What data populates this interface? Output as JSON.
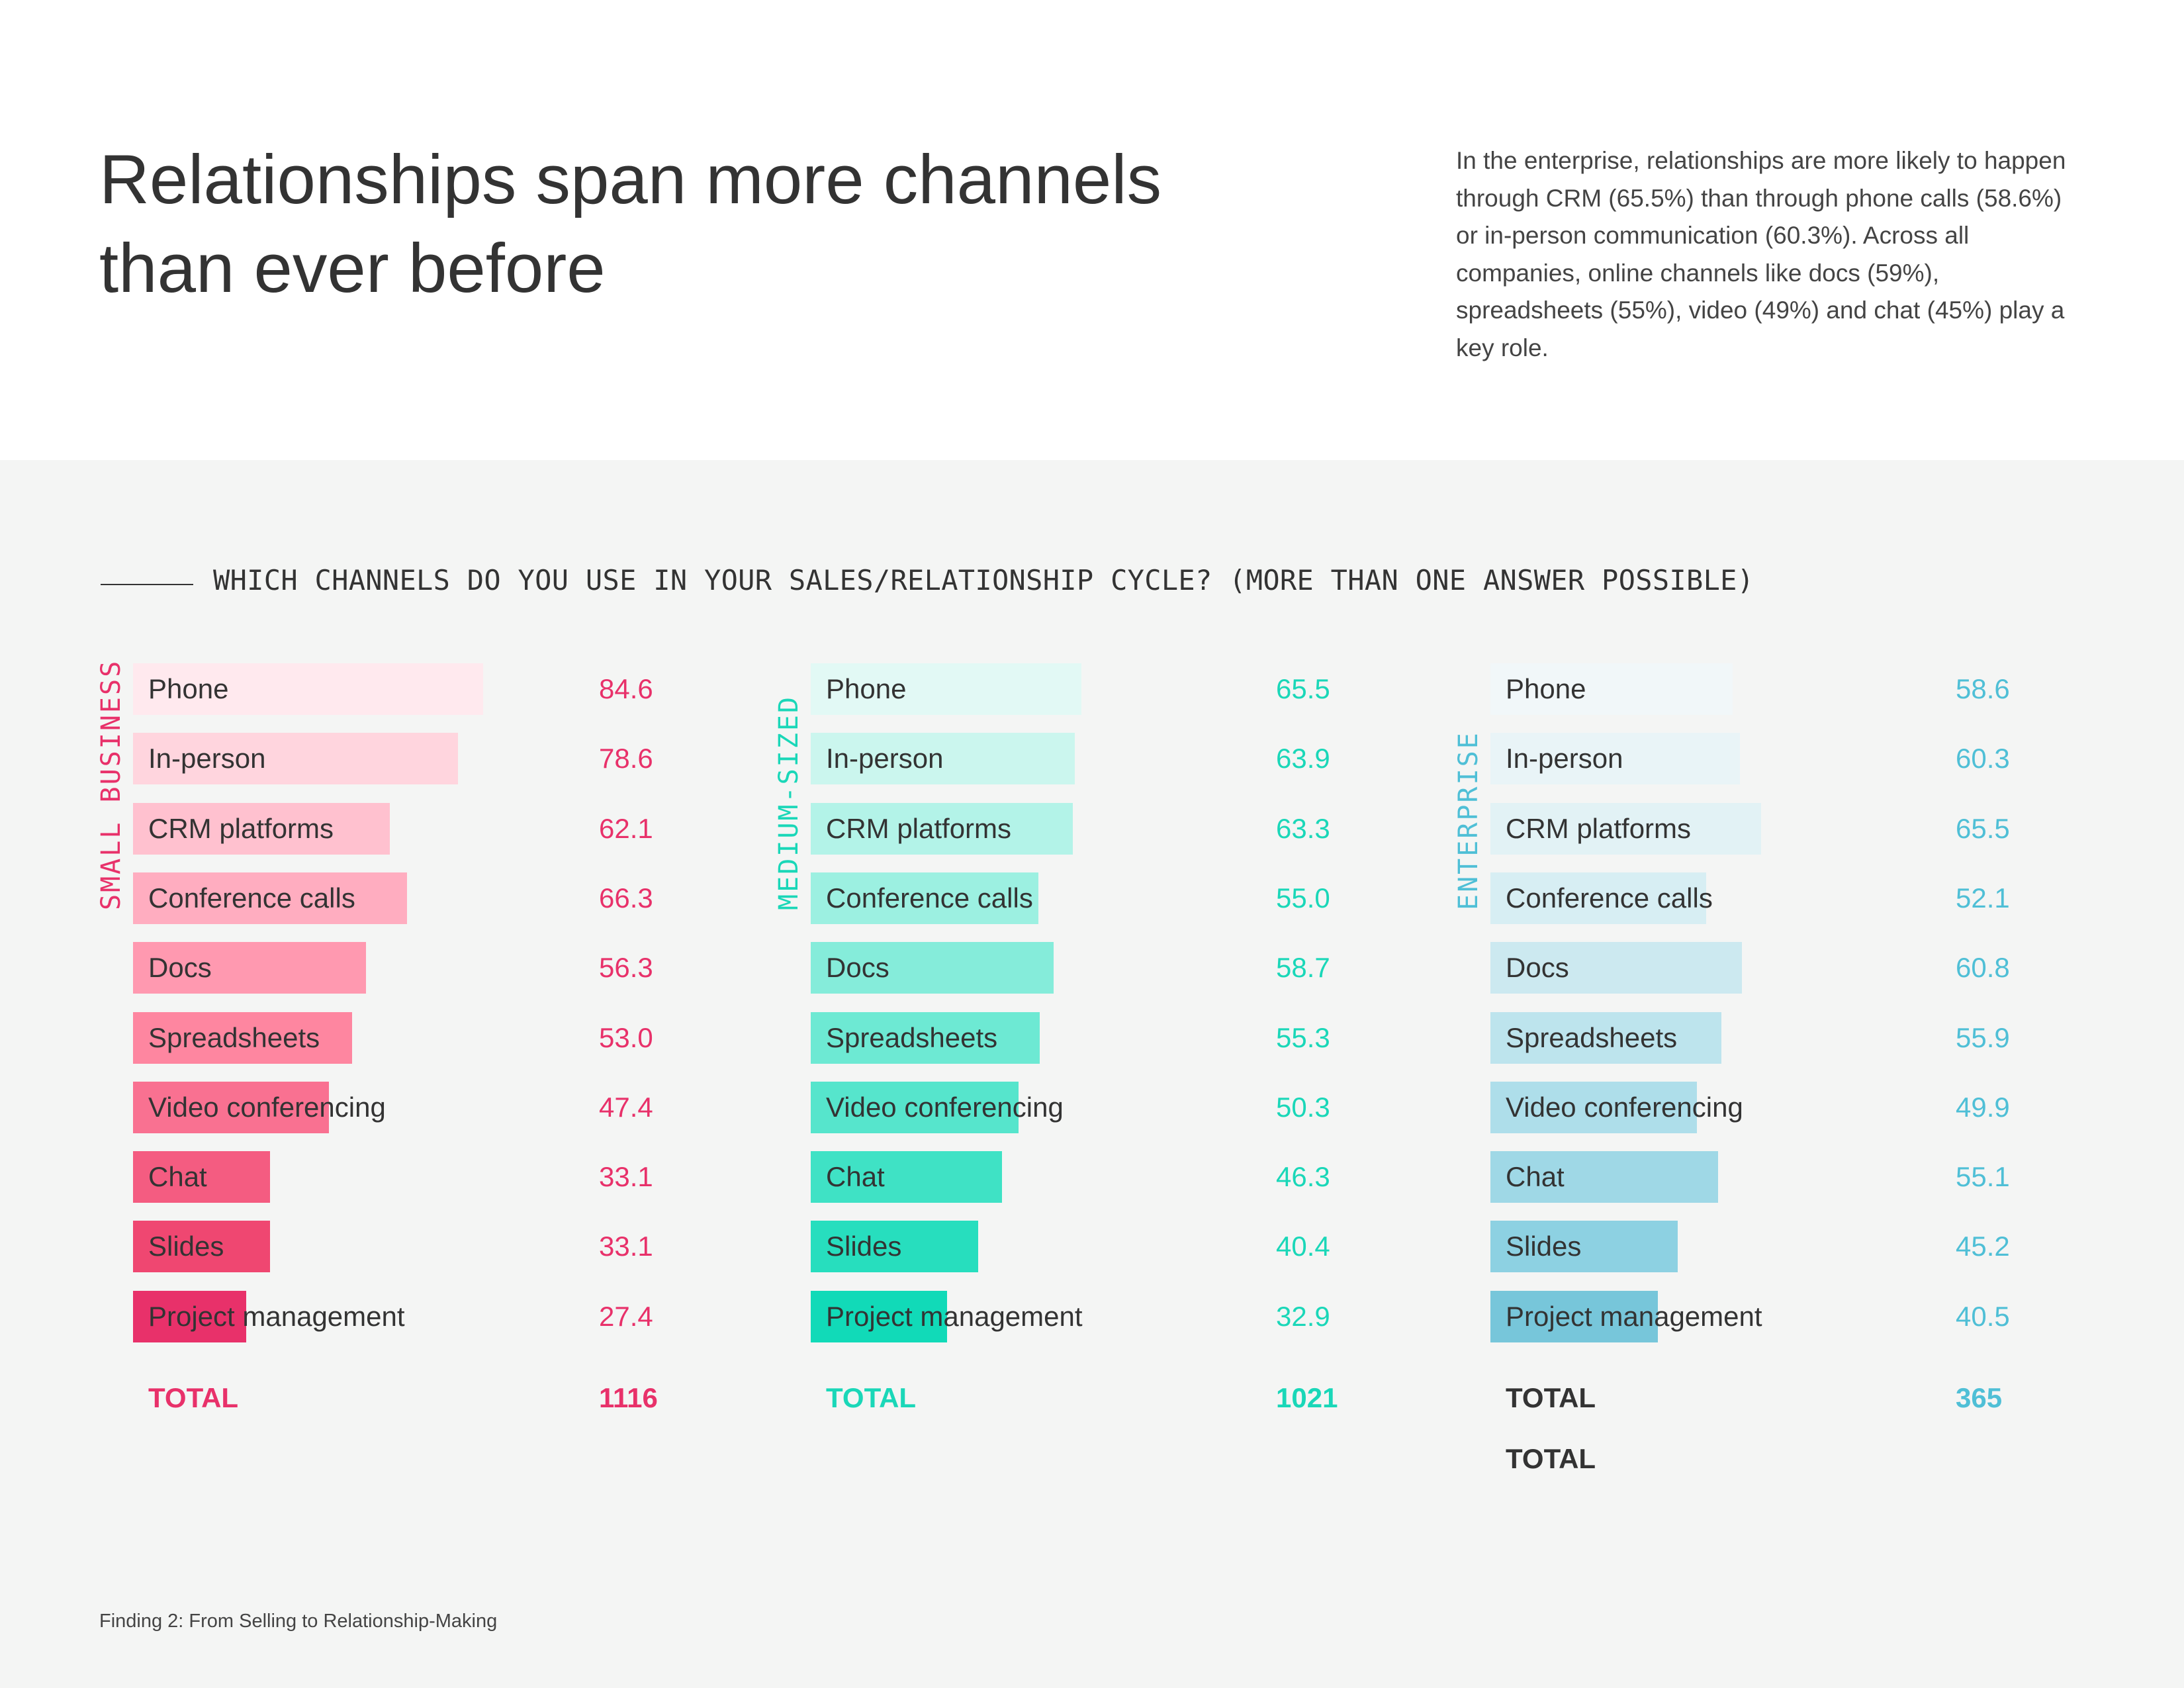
{
  "headline": "Relationships span more channels than ever before",
  "intro": "In the enterprise, relationships are more likely to happen through CRM (65.5%) than through phone calls (58.6%) or in-person communication (60.3%). Across all companies, online channels like docs (59%), spreadsheets (55%), video (49%) and chat (45%) play a key role.",
  "question": "WHICH CHANNELS DO YOU USE IN YOUR SALES/RELATIONSHIP CYCLE? (MORE THAN ONE ANSWER POSSIBLE)",
  "footer": "Finding 2: From Selling to Relationship-Making",
  "colors": {
    "small_business": "#e8316a",
    "medium_sized": "#1ad7b8",
    "enterprise": "#4fbfd6",
    "enterprise_total_label": "#333333"
  },
  "chart_data": {
    "type": "bar",
    "orientation": "horizontal",
    "title": "WHICH CHANNELS DO YOU USE IN YOUR SALES/RELATIONSHIP CYCLE? (MORE THAN ONE ANSWER POSSIBLE)",
    "categories": [
      "Phone",
      "In-person",
      "CRM platforms",
      "Conference calls",
      "Docs",
      "Spreadsheets",
      "Video conferencing",
      "Chat",
      "Slides",
      "Project management"
    ],
    "series": [
      {
        "name": "SMALL BUSINESS",
        "values": [
          84.6,
          78.6,
          62.1,
          66.3,
          56.3,
          53.0,
          47.4,
          33.1,
          33.1,
          27.4
        ],
        "labels": [
          "84.6",
          "78.6",
          "62.1",
          "66.3",
          "56.3",
          "53.0",
          "47.4",
          "33.1",
          "33.1",
          "27.4"
        ],
        "total_label": "TOTAL",
        "total": "1116",
        "extra_total_label": "",
        "shades": [
          "#ffe9ee",
          "#ffd5de",
          "#ffc1cf",
          "#ffadc0",
          "#ff99b0",
          "#fe86a0",
          "#f97191",
          "#f45c81",
          "#ef4771",
          "#e8316a"
        ]
      },
      {
        "name": "MEDIUM-SIZED",
        "values": [
          65.5,
          63.9,
          63.3,
          55.0,
          58.7,
          55.3,
          50.3,
          46.3,
          40.4,
          32.9
        ],
        "labels": [
          "65.5",
          "63.9",
          "63.3",
          "55.0",
          "58.7",
          "55.3",
          "50.3",
          "46.3",
          "40.4",
          "32.9"
        ],
        "total_label": "TOTAL",
        "total": "1021",
        "extra_total_label": "",
        "shades": [
          "#e2f9f5",
          "#cbf6ee",
          "#b3f3e8",
          "#9cf0e1",
          "#85ecda",
          "#6de9d3",
          "#56e5cc",
          "#3fe2c5",
          "#27debe",
          "#11dab8"
        ]
      },
      {
        "name": "ENTERPRISE",
        "values": [
          58.6,
          60.3,
          65.5,
          52.1,
          60.8,
          55.9,
          49.9,
          55.1,
          45.2,
          40.5
        ],
        "labels": [
          "58.6",
          "60.3",
          "65.5",
          "52.1",
          "60.8",
          "55.9",
          "49.9",
          "55.1",
          "45.2",
          "40.5"
        ],
        "total_label": "TOTAL",
        "total": "365",
        "extra_total_label": "TOTAL",
        "shades": [
          "#f1f7f9",
          "#e9f4f7",
          "#e2f2f5",
          "#d7eef3",
          "#cce9f0",
          "#bde4ed",
          "#aedeea",
          "#9fd8e6",
          "#8dd1e2",
          "#77c6da"
        ]
      }
    ],
    "xlim": [
      0,
      100
    ],
    "legend": "none"
  }
}
